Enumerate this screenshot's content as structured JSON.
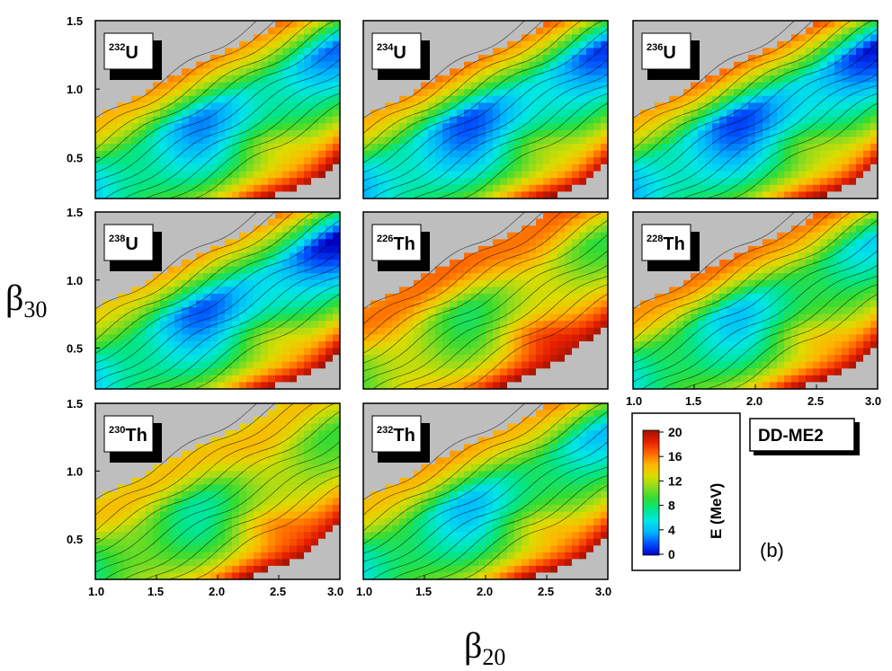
{
  "chart_data": {
    "type": "heatmap",
    "xlabel": "β",
    "xlabel_sub": "20",
    "ylabel": "β",
    "ylabel_sub": "30",
    "xlim": [
      1.0,
      3.0
    ],
    "ylim": [
      0.2,
      1.5
    ],
    "x_ticks": [
      "1.0",
      "1.5",
      "2.0",
      "2.5",
      "3.0"
    ],
    "x_ticks_last_panel_left": [
      "1.0",
      "1.5",
      "2.0",
      "2.5",
      "3.0"
    ],
    "y_ticks": [
      "0.5",
      "1.0",
      "1.5"
    ],
    "model_label": "DD-ME2",
    "panel_label": "(b)",
    "colorbar": {
      "label": "E (MeV)",
      "min": 0,
      "max": 20,
      "ticks": [
        "0",
        "4",
        "8",
        "12",
        "16",
        "20"
      ],
      "colors": [
        "#0000c8",
        "#0050ff",
        "#00b4ff",
        "#00e6e6",
        "#00e68c",
        "#32dc32",
        "#8cdc1e",
        "#dcdc00",
        "#ffb400",
        "#ff6400",
        "#e61e00",
        "#a01400"
      ],
      "above_max_color": "#bebebe"
    },
    "panels": [
      {
        "nucleus_mass": "232",
        "nucleus_symbol": "U",
        "valley_min_energy": 5,
        "valley_at_top": 4,
        "fission_ridge": 14
      },
      {
        "nucleus_mass": "234",
        "nucleus_symbol": "U",
        "valley_min_energy": 4,
        "valley_at_top": 3,
        "fission_ridge": 14
      },
      {
        "nucleus_mass": "236",
        "nucleus_symbol": "U",
        "valley_min_energy": 4,
        "valley_at_top": 2,
        "fission_ridge": 14
      },
      {
        "nucleus_mass": "238",
        "nucleus_symbol": "U",
        "valley_min_energy": 5,
        "valley_at_top": 1,
        "fission_ridge": 13
      },
      {
        "nucleus_mass": "226",
        "nucleus_symbol": "Th",
        "valley_min_energy": 10,
        "valley_at_top": 11,
        "fission_ridge": 16
      },
      {
        "nucleus_mass": "228",
        "nucleus_symbol": "Th",
        "valley_min_energy": 6,
        "valley_at_top": 7,
        "fission_ridge": 15
      },
      {
        "nucleus_mass": "230",
        "nucleus_symbol": "Th",
        "valley_min_energy": 8,
        "valley_at_top": 12,
        "fission_ridge": 14
      },
      {
        "nucleus_mass": "232",
        "nucleus_symbol": "Th",
        "valley_min_energy": 6,
        "valley_at_top": 6,
        "fission_ridge": 14
      }
    ]
  }
}
